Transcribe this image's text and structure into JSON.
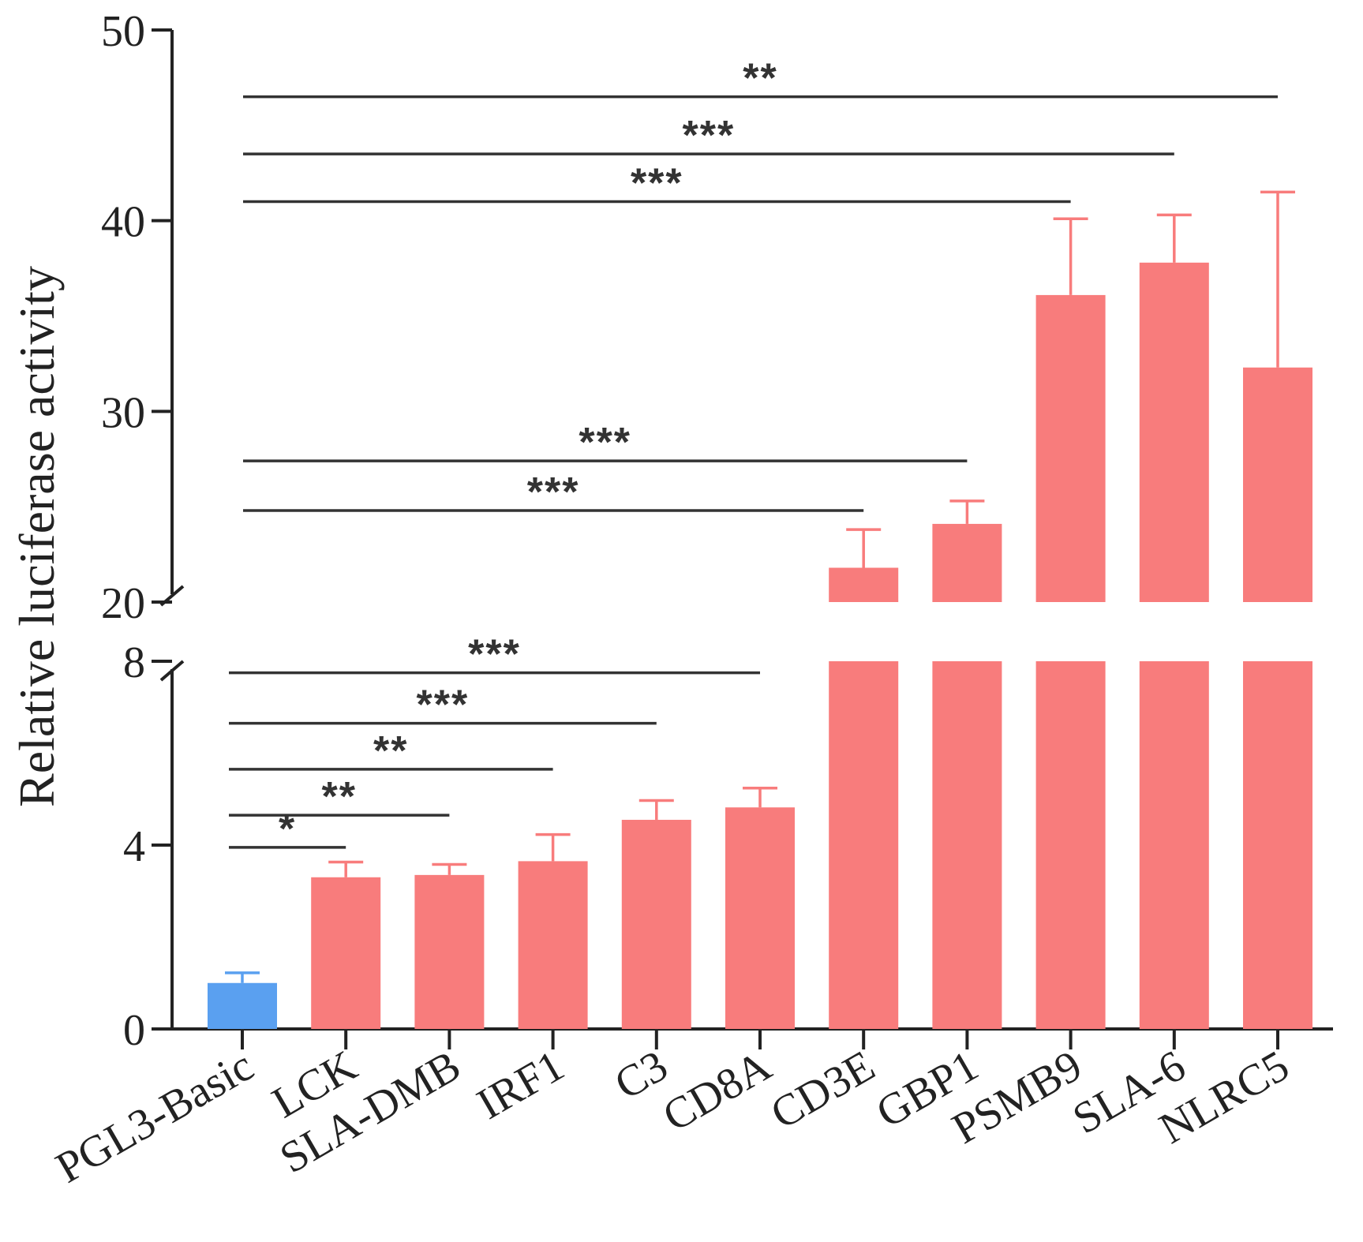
{
  "chart_data": {
    "type": "bar",
    "ylabel": "Relative luciferase activity",
    "xlabel": "",
    "title": "",
    "broken_y_axis": true,
    "lower_segment": {
      "ylim": [
        0,
        8
      ],
      "ticks": [
        0,
        4,
        8
      ]
    },
    "upper_segment": {
      "ylim": [
        20,
        50
      ],
      "ticks": [
        20,
        30,
        40,
        50
      ]
    },
    "categories": [
      "PGL3-Basic",
      "LCK",
      "SLA-DMB",
      "IRF1",
      "C3",
      "CD8A",
      "CD3E",
      "GBP1",
      "PSMB9",
      "SLA-6",
      "NLRC5"
    ],
    "values": [
      1.0,
      3.3,
      3.35,
      3.65,
      4.55,
      4.82,
      21.8,
      24.1,
      36.1,
      37.8,
      32.3
    ],
    "errors": [
      0.22,
      0.33,
      0.23,
      0.58,
      0.42,
      0.42,
      2.0,
      1.2,
      4.0,
      2.5,
      9.2
    ],
    "colors": [
      "#5aa0f0",
      "#f87c7c",
      "#f87c7c",
      "#f87c7c",
      "#f87c7c",
      "#f87c7c",
      "#f87c7c",
      "#f87c7c",
      "#f87c7c",
      "#f87c7c",
      "#f87c7c"
    ],
    "comparisons": [
      {
        "from": "PGL3-Basic",
        "to": "LCK",
        "label": "*",
        "level": 3.95
      },
      {
        "from": "PGL3-Basic",
        "to": "SLA-DMB",
        "label": "**",
        "level": 4.65
      },
      {
        "from": "PGL3-Basic",
        "to": "IRF1",
        "label": "**",
        "level": 5.65
      },
      {
        "from": "PGL3-Basic",
        "to": "C3",
        "label": "***",
        "level": 6.65
      },
      {
        "from": "PGL3-Basic",
        "to": "CD8A",
        "label": "***",
        "level": 7.75
      },
      {
        "from": "PGL3-Basic",
        "to": "CD3E",
        "label": "***",
        "level": 24.8
      },
      {
        "from": "PGL3-Basic",
        "to": "GBP1",
        "label": "***",
        "level": 27.4
      },
      {
        "from": "PGL3-Basic",
        "to": "PSMB9",
        "label": "***",
        "level": 41.0
      },
      {
        "from": "PGL3-Basic",
        "to": "SLA-6",
        "label": "***",
        "level": 43.5
      },
      {
        "from": "PGL3-Basic",
        "to": "NLRC5",
        "label": "**",
        "level": 46.5
      }
    ]
  }
}
